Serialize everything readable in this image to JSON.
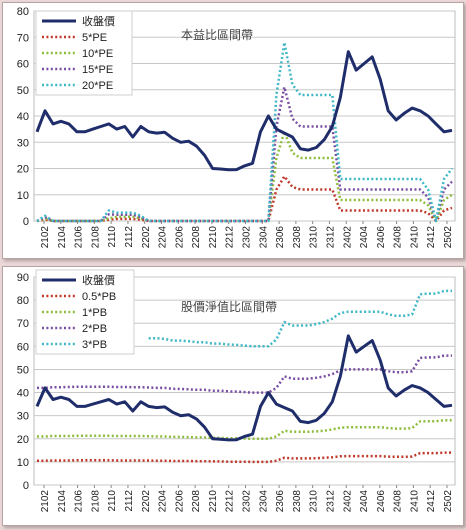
{
  "chart_data": [
    {
      "type": "line",
      "title": "本益比區間帶",
      "ylim": [
        0,
        80
      ],
      "yticks": [
        0,
        10,
        20,
        30,
        40,
        50,
        60,
        70,
        80
      ],
      "xticks": [
        "2102",
        "2104",
        "2106",
        "2108",
        "2110",
        "2112",
        "2202",
        "2204",
        "2206",
        "2208",
        "2210",
        "2212",
        "2302",
        "2304",
        "2306",
        "2308",
        "2310",
        "2312",
        "2402",
        "2404",
        "2406",
        "2408",
        "2410",
        "2412",
        "2502"
      ],
      "grid": true,
      "legend_position": "top-left",
      "series": [
        {
          "name": "收盤價",
          "color": "#1f2d6b",
          "style": "solid",
          "width": 3,
          "values": [
            34,
            42,
            37,
            38,
            37,
            34,
            34,
            35,
            36,
            37,
            35,
            36,
            32,
            36,
            34,
            33.5,
            33.8,
            31.5,
            30,
            30.4,
            28.5,
            25,
            20,
            19.8,
            19.5,
            19.6,
            21,
            22,
            34,
            40,
            35,
            33.5,
            32,
            27.5,
            27,
            28,
            31,
            36,
            47,
            64.5,
            57.5,
            60,
            62.5,
            54,
            42,
            38.5,
            41,
            43,
            42,
            40,
            37,
            34,
            34.5
          ]
        },
        {
          "name": "5*PE",
          "color": "#c0392b",
          "style": "dotted",
          "width": 2.5,
          "values": [
            0,
            0.5,
            0,
            0,
            0,
            0,
            0,
            0,
            0,
            0.5,
            0.8,
            0.8,
            0.8,
            0.5,
            0,
            0,
            0,
            0,
            0,
            0,
            0,
            0,
            0,
            0,
            0,
            0,
            0,
            0,
            0,
            0,
            12,
            17,
            13,
            12,
            12,
            12,
            12,
            12,
            4,
            4,
            4,
            4,
            4,
            4,
            4,
            4,
            4,
            4,
            4,
            3,
            0,
            4,
            5
          ]
        },
        {
          "name": "10*PE",
          "color": "#8dbd3b",
          "style": "dotted",
          "width": 2.5,
          "values": [
            0,
            1,
            0,
            0,
            0,
            0,
            0,
            0,
            0,
            1,
            1.6,
            1.6,
            1.6,
            1,
            0,
            0,
            0,
            0,
            0,
            0,
            0,
            0,
            0,
            0,
            0,
            0,
            0,
            0,
            0,
            0,
            24,
            34,
            26,
            24,
            24,
            24,
            24,
            24,
            8,
            8,
            8,
            8,
            8,
            8,
            8,
            8,
            8,
            8,
            8,
            6,
            0,
            8,
            10
          ]
        },
        {
          "name": "15*PE",
          "color": "#7a4fa3",
          "style": "dotted",
          "width": 2.5,
          "values": [
            0,
            1.5,
            0,
            0,
            0,
            0,
            0,
            0,
            0,
            2.5,
            2.4,
            2.4,
            2.4,
            1.5,
            0,
            0,
            0,
            0,
            0,
            0,
            0,
            0,
            0,
            0,
            0,
            0,
            0,
            0,
            0,
            0,
            36,
            51,
            39,
            36,
            36,
            36,
            36,
            36,
            12,
            12,
            12,
            12,
            12,
            12,
            12,
            12,
            12,
            12,
            12,
            9,
            0,
            12,
            15
          ]
        },
        {
          "name": "20*PE",
          "color": "#3fb7c6",
          "style": "dotted",
          "width": 2.5,
          "values": [
            0,
            2,
            0,
            0,
            0,
            0,
            0,
            0,
            0,
            4,
            3.2,
            3.2,
            3.2,
            2,
            0,
            0,
            0,
            0,
            0,
            0,
            0,
            0,
            0,
            0,
            0,
            0,
            0,
            0,
            0,
            0,
            48,
            68,
            52,
            48,
            48,
            48,
            48,
            48,
            16,
            16,
            16,
            16,
            16,
            16,
            16,
            16,
            16,
            16,
            16,
            12,
            0,
            16,
            20
          ]
        }
      ]
    },
    {
      "type": "line",
      "title": "股價淨值比區間帶",
      "ylim": [
        0,
        90
      ],
      "yticks": [
        0,
        10,
        20,
        30,
        40,
        50,
        60,
        70,
        80,
        90
      ],
      "xticks": [
        "2102",
        "2104",
        "2106",
        "2108",
        "2110",
        "2112",
        "2202",
        "2204",
        "2206",
        "2208",
        "2210",
        "2212",
        "2302",
        "2304",
        "2306",
        "2308",
        "2310",
        "2312",
        "2402",
        "2404",
        "2406",
        "2408",
        "2410",
        "2412",
        "2502"
      ],
      "grid": true,
      "legend_position": "top-left",
      "series": [
        {
          "name": "收盤價",
          "color": "#1f2d6b",
          "style": "solid",
          "width": 3,
          "values": [
            34,
            42,
            37,
            38,
            37,
            34,
            34,
            35,
            36,
            37,
            35,
            36,
            32,
            36,
            34,
            33.5,
            33.8,
            31.5,
            30,
            30.4,
            28.5,
            25,
            20,
            19.8,
            19.5,
            19.6,
            21,
            22,
            34,
            40,
            35,
            33.5,
            32,
            27.5,
            27,
            28,
            31,
            36,
            47,
            64.5,
            57.5,
            60,
            62.5,
            54,
            42,
            38.5,
            41,
            43,
            42,
            40,
            37,
            34,
            34.5
          ]
        },
        {
          "name": "0.5*PB",
          "color": "#c0392b",
          "style": "dotted",
          "width": 2.5,
          "values": [
            10.5,
            10.5,
            10.6,
            10.6,
            10.6,
            10.7,
            10.7,
            10.7,
            10.7,
            10.7,
            10.6,
            10.6,
            10.6,
            10.6,
            10.6,
            10.5,
            10.5,
            10.4,
            10.4,
            10.4,
            10.3,
            10.3,
            10.2,
            10.2,
            10.1,
            10.1,
            10.1,
            10,
            10,
            10,
            10.5,
            11.8,
            11.5,
            11.5,
            11.5,
            11.6,
            11.8,
            12,
            12.4,
            12.5,
            12.5,
            12.5,
            12.5,
            12.5,
            12.3,
            12.2,
            12.2,
            12.3,
            13.8,
            13.8,
            13.8,
            14,
            14
          ]
        },
        {
          "name": "1*PB",
          "color": "#8dbd3b",
          "style": "dotted",
          "width": 2.5,
          "values": [
            21,
            21,
            21.2,
            21.2,
            21.2,
            21.3,
            21.3,
            21.3,
            21.3,
            21.3,
            21.2,
            21.2,
            21.2,
            21.2,
            21.1,
            21,
            21,
            20.8,
            20.8,
            20.7,
            20.6,
            20.6,
            20.4,
            20.4,
            20.2,
            20.2,
            20.1,
            20,
            20,
            20,
            21,
            23.5,
            23,
            23,
            23,
            23.2,
            23.5,
            24,
            24.8,
            25,
            25,
            25,
            25,
            25,
            24.6,
            24.4,
            24.4,
            24.6,
            27.5,
            27.6,
            27.6,
            28,
            28
          ]
        },
        {
          "name": "2*PB",
          "color": "#7a4fa3",
          "style": "dotted",
          "width": 2.5,
          "values": [
            42,
            42,
            42.3,
            42.3,
            42.4,
            42.5,
            42.5,
            42.5,
            42.5,
            42.5,
            42.4,
            42.4,
            42.3,
            42.3,
            42.2,
            42,
            42,
            41.6,
            41.6,
            41.4,
            41.2,
            41.2,
            40.8,
            40.8,
            40.5,
            40.4,
            40.2,
            40,
            40,
            40,
            42,
            47,
            46,
            46,
            46,
            46.4,
            47,
            48,
            49.6,
            50,
            50,
            50,
            50,
            50,
            49.2,
            48.8,
            48.8,
            49.2,
            55,
            55.2,
            55.2,
            56,
            56
          ]
        },
        {
          "name": "3*PB",
          "color": "#3fb7c6",
          "style": "dotted",
          "width": 2.5,
          "values": [
            null,
            null,
            null,
            null,
            null,
            null,
            null,
            null,
            null,
            null,
            null,
            null,
            null,
            null,
            63.5,
            63.5,
            63.2,
            62.5,
            62.5,
            62.2,
            61.8,
            61.8,
            61.2,
            61.2,
            60.8,
            60.6,
            60.3,
            60,
            60,
            60,
            63,
            70.5,
            69,
            69,
            69,
            69.6,
            70.5,
            72,
            74.4,
            75,
            75,
            75,
            75,
            75,
            73.8,
            73.2,
            73.2,
            73.8,
            82.5,
            82.8,
            82.8,
            84,
            84
          ]
        }
      ]
    }
  ]
}
